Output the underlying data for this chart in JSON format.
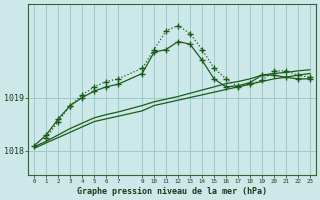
{
  "background_color": "#cce8e8",
  "grid_color": "#99cccc",
  "line_color": "#1a5c1a",
  "xlabel": "Graphe pression niveau de la mer (hPa)",
  "xlim": [
    -0.5,
    23.5
  ],
  "ylim": [
    1017.55,
    1020.75
  ],
  "yticks": [
    1018,
    1019
  ],
  "xticks": [
    0,
    1,
    2,
    3,
    4,
    5,
    6,
    7,
    9,
    10,
    11,
    12,
    13,
    14,
    15,
    16,
    17,
    18,
    19,
    20,
    21,
    22,
    23
  ],
  "s1_x": [
    0,
    1,
    2,
    3,
    4,
    5,
    6,
    7,
    9,
    10,
    11,
    12,
    13,
    14,
    15,
    16,
    17,
    18,
    19,
    20,
    21,
    22,
    23
  ],
  "s1_y": [
    1018.05,
    1018.15,
    1018.25,
    1018.35,
    1018.45,
    1018.55,
    1018.6,
    1018.65,
    1018.75,
    1018.85,
    1018.9,
    1018.95,
    1019.0,
    1019.05,
    1019.1,
    1019.15,
    1019.2,
    1019.25,
    1019.3,
    1019.35,
    1019.38,
    1019.42,
    1019.45
  ],
  "s2_x": [
    0,
    1,
    2,
    3,
    4,
    5,
    6,
    7,
    9,
    10,
    11,
    12,
    13,
    14,
    15,
    16,
    17,
    18,
    19,
    20,
    21,
    22,
    23
  ],
  "s2_y": [
    1018.08,
    1018.18,
    1018.3,
    1018.42,
    1018.52,
    1018.62,
    1018.68,
    1018.73,
    1018.85,
    1018.92,
    1018.97,
    1019.02,
    1019.08,
    1019.14,
    1019.2,
    1019.26,
    1019.3,
    1019.35,
    1019.42,
    1019.45,
    1019.47,
    1019.5,
    1019.52
  ],
  "s3_x": [
    0,
    1,
    2,
    3,
    4,
    5,
    6,
    7,
    9,
    10,
    11,
    12,
    13,
    14,
    15,
    16,
    17,
    18,
    19,
    20,
    21,
    22,
    23
  ],
  "s3_y": [
    1018.1,
    1018.3,
    1018.6,
    1018.85,
    1019.0,
    1019.12,
    1019.2,
    1019.25,
    1019.45,
    1019.85,
    1019.9,
    1020.05,
    1020.0,
    1019.7,
    1019.35,
    1019.2,
    1019.22,
    1019.28,
    1019.42,
    1019.42,
    1019.38,
    1019.35,
    1019.35
  ],
  "s4_x": [
    1,
    2,
    3,
    4,
    5,
    6,
    7,
    9,
    10,
    11,
    12,
    13,
    14,
    15,
    16,
    17,
    18,
    19,
    20,
    21,
    22,
    23
  ],
  "s4_y": [
    1018.25,
    1018.55,
    1018.85,
    1019.05,
    1019.2,
    1019.3,
    1019.35,
    1019.55,
    1019.9,
    1020.25,
    1020.35,
    1020.2,
    1019.9,
    1019.55,
    1019.35,
    1019.2,
    1019.25,
    1019.32,
    1019.5,
    1019.5,
    1019.42,
    1019.38
  ]
}
